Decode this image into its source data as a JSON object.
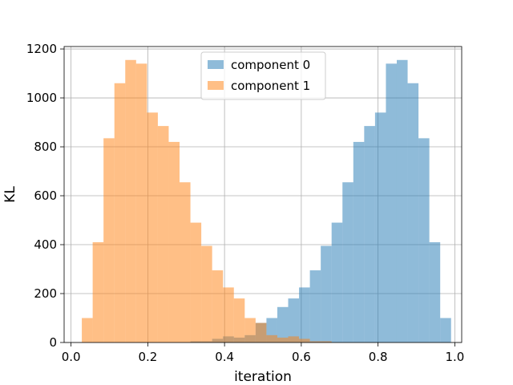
{
  "chart_data": {
    "type": "bar",
    "subtype": "histogram",
    "xlabel": "iteration",
    "ylabel": "KL",
    "xlim": [
      -0.018,
      1.018
    ],
    "ylim": [
      0,
      1210
    ],
    "grid": true,
    "legend_position": "top-center",
    "xticks": [
      0.0,
      0.2,
      0.4,
      0.6,
      0.8,
      1.0
    ],
    "xtick_labels": [
      "0.0",
      "0.2",
      "0.4",
      "0.6",
      "0.8",
      "1.0"
    ],
    "yticks": [
      0,
      200,
      400,
      600,
      800,
      1000,
      1200
    ],
    "ytick_labels": [
      "0",
      "200",
      "400",
      "600",
      "800",
      "1000",
      "1200"
    ],
    "bin_edges": [
      0.0281,
      0.0564,
      0.0847,
      0.113,
      0.1413,
      0.1696,
      0.1979,
      0.2262,
      0.2545,
      0.2828,
      0.3111,
      0.3394,
      0.3677,
      0.396,
      0.4243,
      0.4526,
      0.4809,
      0.5092,
      0.5375,
      0.5658,
      0.5941,
      0.6224,
      0.6507,
      0.679,
      0.7073,
      0.7356,
      0.7639,
      0.7922,
      0.8205,
      0.8488,
      0.8771,
      0.9054,
      0.9337,
      0.962
    ],
    "series": [
      {
        "name": "component 0",
        "color": "#1f77b4",
        "alpha": 0.5,
        "bins": [
          {
            "x0": 0.0564,
            "x1": 0.0847,
            "value": 0
          },
          {
            "x0": 0.3111,
            "x1": 0.3394,
            "value": 5
          },
          {
            "x0": 0.3394,
            "x1": 0.3677,
            "value": 5
          },
          {
            "x0": 0.3677,
            "x1": 0.396,
            "value": 15
          },
          {
            "x0": 0.396,
            "x1": 0.4243,
            "value": 25
          },
          {
            "x0": 0.4243,
            "x1": 0.4526,
            "value": 20
          },
          {
            "x0": 0.4526,
            "x1": 0.4809,
            "value": 30
          },
          {
            "x0": 0.4809,
            "x1": 0.5092,
            "value": 80
          },
          {
            "x0": 0.5092,
            "x1": 0.5375,
            "value": 100
          },
          {
            "x0": 0.5375,
            "x1": 0.5658,
            "value": 145
          },
          {
            "x0": 0.5658,
            "x1": 0.5941,
            "value": 180
          },
          {
            "x0": 0.5941,
            "x1": 0.6224,
            "value": 225
          },
          {
            "x0": 0.6224,
            "x1": 0.6507,
            "value": 295
          },
          {
            "x0": 0.6507,
            "x1": 0.679,
            "value": 395
          },
          {
            "x0": 0.679,
            "x1": 0.7073,
            "value": 490
          },
          {
            "x0": 0.7073,
            "x1": 0.7356,
            "value": 655
          },
          {
            "x0": 0.7356,
            "x1": 0.7639,
            "value": 820
          },
          {
            "x0": 0.7639,
            "x1": 0.7922,
            "value": 885
          },
          {
            "x0": 0.7922,
            "x1": 0.8205,
            "value": 940
          },
          {
            "x0": 0.8205,
            "x1": 0.8488,
            "value": 1140
          },
          {
            "x0": 0.8488,
            "x1": 0.8771,
            "value": 1155
          },
          {
            "x0": 0.8771,
            "x1": 0.9054,
            "value": 1060
          },
          {
            "x0": 0.9054,
            "x1": 0.9337,
            "value": 835
          },
          {
            "x0": 0.9337,
            "x1": 0.962,
            "value": 410
          },
          {
            "x0": 0.962,
            "x1": 0.9903,
            "value": 100
          }
        ]
      },
      {
        "name": "component 1",
        "color": "#ff7f0e",
        "alpha": 0.5,
        "bins": [
          {
            "x0": 0.0281,
            "x1": 0.0564,
            "value": 100
          },
          {
            "x0": 0.0564,
            "x1": 0.0847,
            "value": 410
          },
          {
            "x0": 0.0847,
            "x1": 0.113,
            "value": 835
          },
          {
            "x0": 0.113,
            "x1": 0.1413,
            "value": 1060
          },
          {
            "x0": 0.1413,
            "x1": 0.1696,
            "value": 1155
          },
          {
            "x0": 0.1696,
            "x1": 0.1979,
            "value": 1140
          },
          {
            "x0": 0.1979,
            "x1": 0.2262,
            "value": 940
          },
          {
            "x0": 0.2262,
            "x1": 0.2545,
            "value": 885
          },
          {
            "x0": 0.2545,
            "x1": 0.2828,
            "value": 820
          },
          {
            "x0": 0.2828,
            "x1": 0.3111,
            "value": 655
          },
          {
            "x0": 0.3111,
            "x1": 0.3394,
            "value": 490
          },
          {
            "x0": 0.3394,
            "x1": 0.3677,
            "value": 395
          },
          {
            "x0": 0.3677,
            "x1": 0.396,
            "value": 295
          },
          {
            "x0": 0.396,
            "x1": 0.4243,
            "value": 225
          },
          {
            "x0": 0.4243,
            "x1": 0.4526,
            "value": 180
          },
          {
            "x0": 0.4526,
            "x1": 0.4809,
            "value": 100
          },
          {
            "x0": 0.4809,
            "x1": 0.5092,
            "value": 80
          },
          {
            "x0": 0.5092,
            "x1": 0.5375,
            "value": 30
          },
          {
            "x0": 0.5375,
            "x1": 0.5658,
            "value": 20
          },
          {
            "x0": 0.5658,
            "x1": 0.5941,
            "value": 25
          },
          {
            "x0": 0.5941,
            "x1": 0.6224,
            "value": 15
          },
          {
            "x0": 0.6224,
            "x1": 0.6507,
            "value": 5
          },
          {
            "x0": 0.6507,
            "x1": 0.679,
            "value": 5
          }
        ]
      }
    ]
  }
}
